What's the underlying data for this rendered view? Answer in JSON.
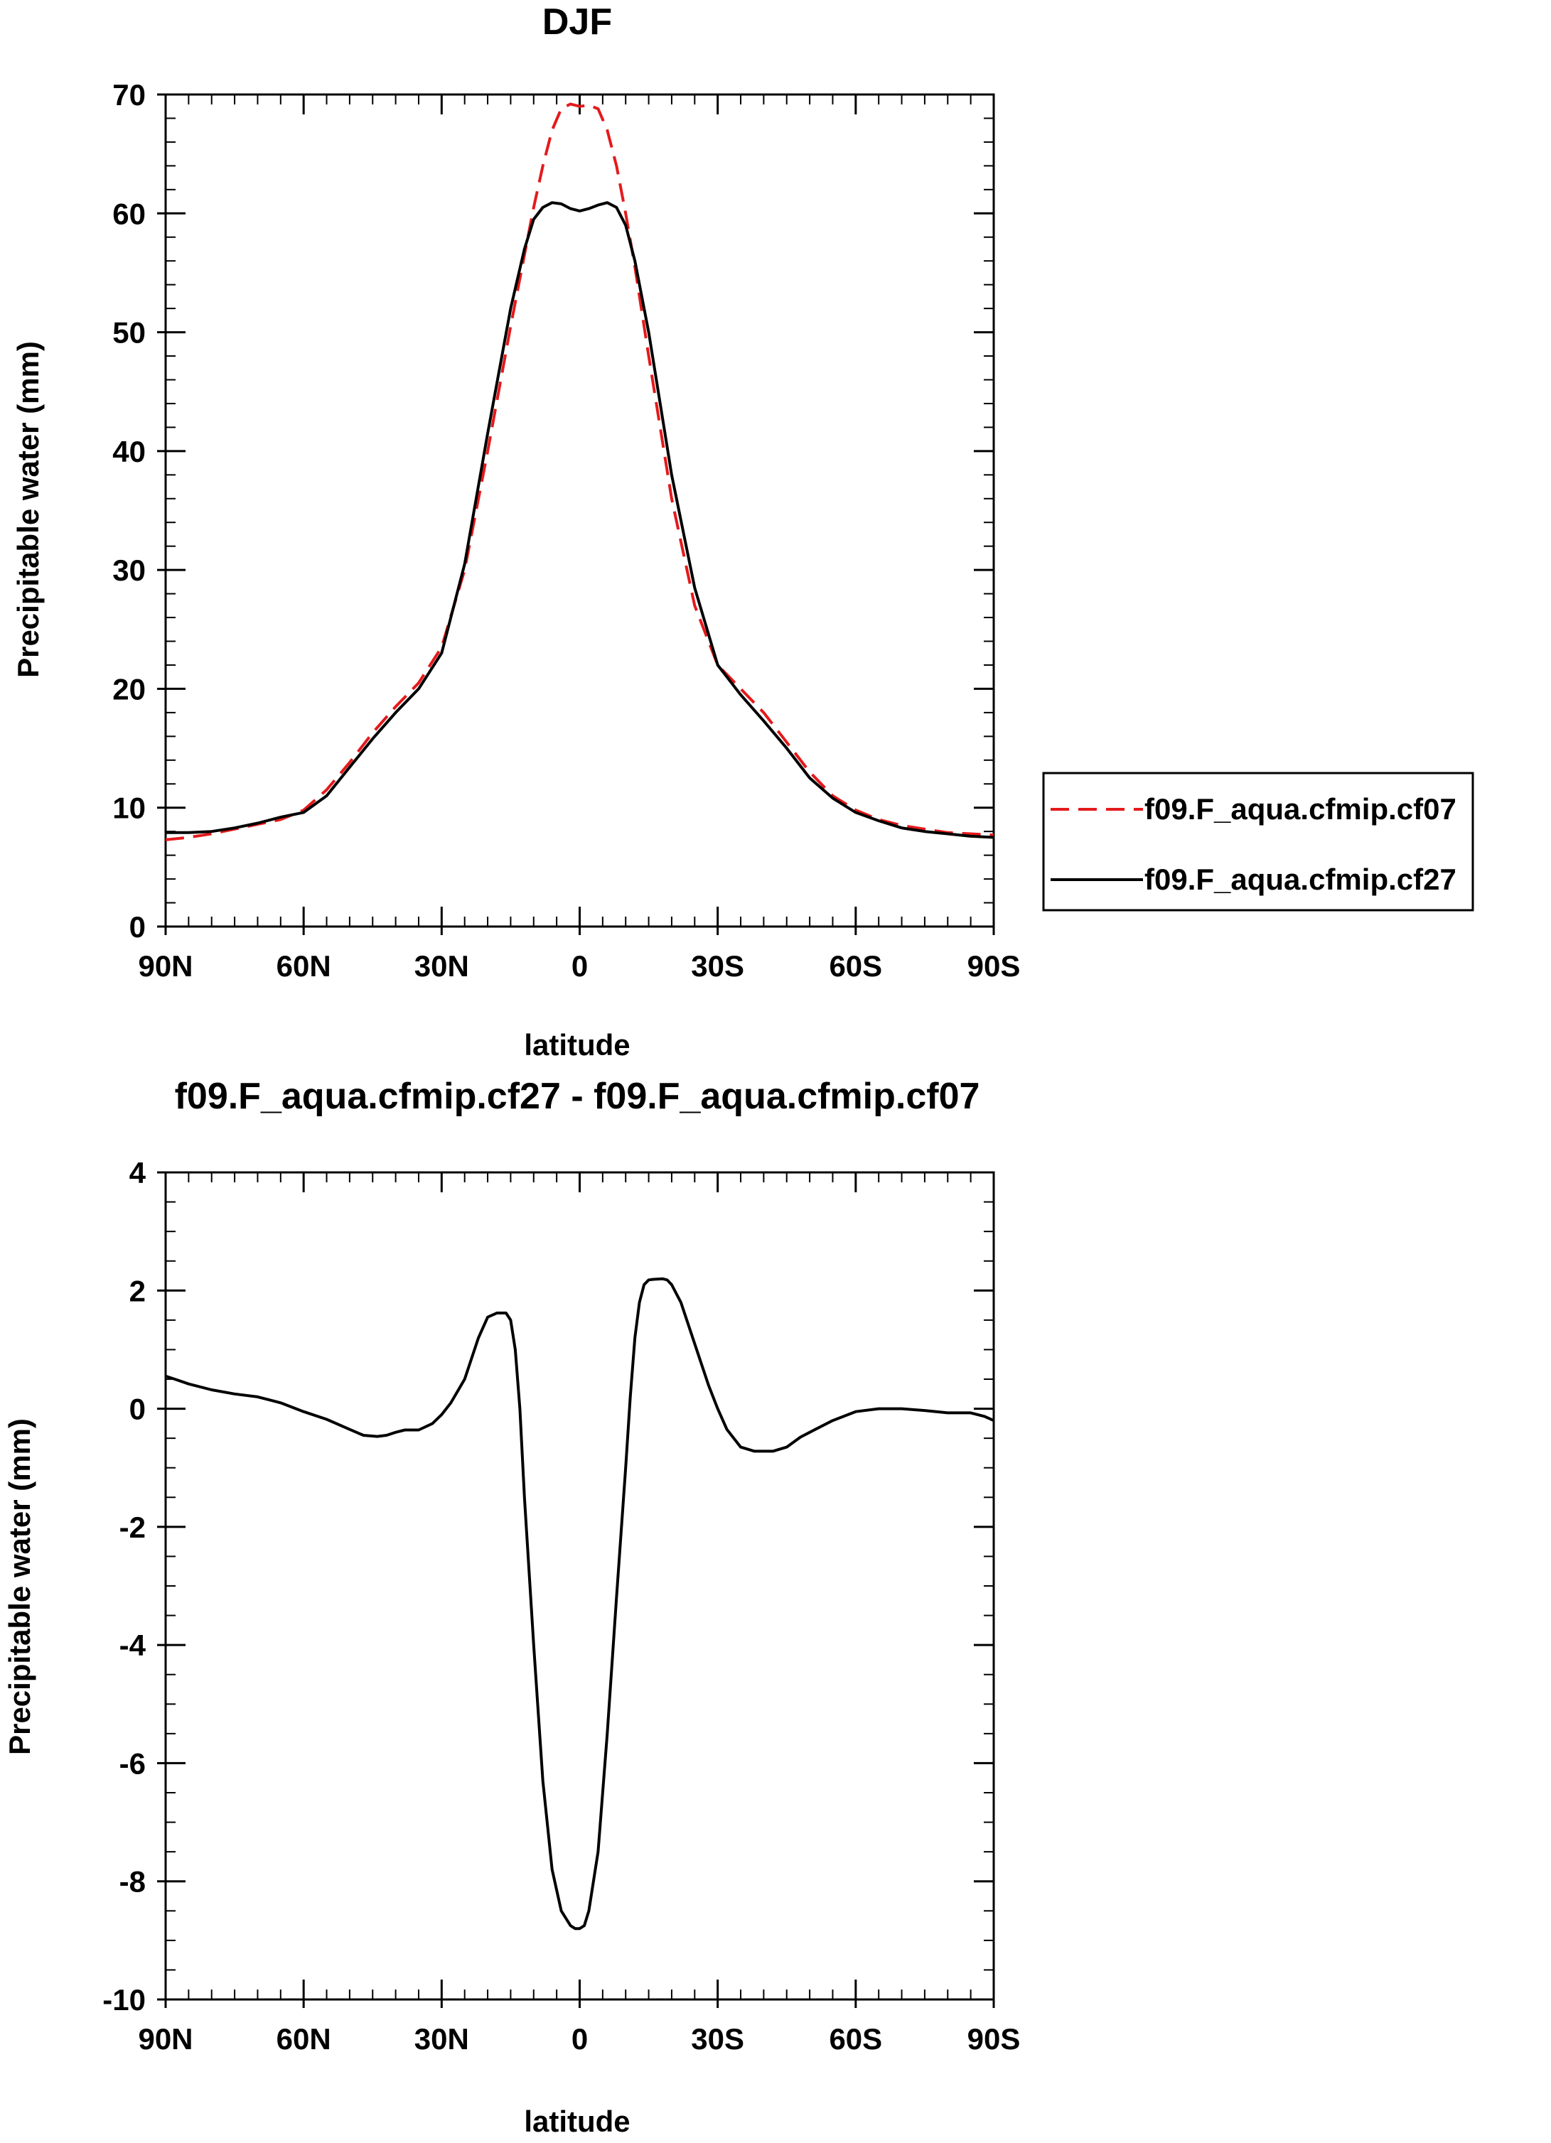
{
  "chart_data": [
    {
      "type": "line",
      "title": "DJF",
      "xlabel": "latitude",
      "ylabel": "Precipitable water (mm)",
      "xlim": [
        90,
        -90
      ],
      "ylim": [
        0,
        70
      ],
      "x_ticks": [
        {
          "value": 90,
          "label": "90N"
        },
        {
          "value": 60,
          "label": "60N"
        },
        {
          "value": 30,
          "label": "30N"
        },
        {
          "value": 0,
          "label": "0"
        },
        {
          "value": -30,
          "label": "30S"
        },
        {
          "value": -60,
          "label": "60S"
        },
        {
          "value": -90,
          "label": "90S"
        }
      ],
      "y_ticks": [
        0,
        10,
        20,
        30,
        40,
        50,
        60,
        70
      ],
      "y_tick_labels": [
        "0",
        "10",
        "20",
        "30",
        "40",
        "50",
        "60",
        "70"
      ],
      "legend_position": "right",
      "series": [
        {
          "name": "f09.F_aqua.cfmip.cf07",
          "color": "#e41a1c",
          "dash": "dashed",
          "x": [
            90,
            85,
            80,
            75,
            70,
            65,
            60,
            55,
            50,
            45,
            40,
            35,
            30,
            25,
            20,
            15,
            12,
            10,
            8,
            6,
            4,
            2,
            0,
            -2,
            -4,
            -6,
            -8,
            -10,
            -12,
            -15,
            -20,
            -25,
            -30,
            -35,
            -40,
            -45,
            -50,
            -55,
            -60,
            -65,
            -70,
            -75,
            -80,
            -85,
            -90
          ],
          "y": [
            7.3,
            7.5,
            7.8,
            8.2,
            8.6,
            9.0,
            9.8,
            11.5,
            13.8,
            16.3,
            18.5,
            20.5,
            23.5,
            30.0,
            40.0,
            50.5,
            56.5,
            60.5,
            64.0,
            67.0,
            68.8,
            69.2,
            69.0,
            69.1,
            68.8,
            67.0,
            64.0,
            60.0,
            55.5,
            48.0,
            36.0,
            27.0,
            22.0,
            20.0,
            18.0,
            15.5,
            13.0,
            11.0,
            9.8,
            9.0,
            8.5,
            8.2,
            7.9,
            7.8,
            7.7
          ]
        },
        {
          "name": "f09.F_aqua.cfmip.cf27",
          "color": "#000000",
          "dash": "solid",
          "x": [
            90,
            85,
            80,
            75,
            70,
            65,
            60,
            55,
            50,
            45,
            40,
            35,
            30,
            25,
            20,
            15,
            12,
            10,
            8,
            6,
            4,
            2,
            0,
            -2,
            -4,
            -6,
            -8,
            -10,
            -12,
            -15,
            -20,
            -25,
            -30,
            -35,
            -40,
            -45,
            -50,
            -55,
            -60,
            -65,
            -70,
            -75,
            -80,
            -85,
            -90
          ],
          "y": [
            7.9,
            7.9,
            8.0,
            8.3,
            8.7,
            9.2,
            9.6,
            11.0,
            13.4,
            15.8,
            18.0,
            20.0,
            23.0,
            30.5,
            41.5,
            52.0,
            57.0,
            59.5,
            60.5,
            60.9,
            60.8,
            60.4,
            60.2,
            60.4,
            60.7,
            60.9,
            60.5,
            59.0,
            56.0,
            50.0,
            38.0,
            28.5,
            22.0,
            19.5,
            17.3,
            15.0,
            12.5,
            10.8,
            9.6,
            8.9,
            8.3,
            8.0,
            7.8,
            7.6,
            7.5
          ]
        }
      ]
    },
    {
      "type": "line",
      "title": "f09.F_aqua.cfmip.cf27 - f09.F_aqua.cfmip.cf07",
      "xlabel": "latitude",
      "ylabel": "Precipitable water (mm)",
      "xlim": [
        90,
        -90
      ],
      "ylim": [
        -10,
        4
      ],
      "x_ticks": [
        {
          "value": 90,
          "label": "90N"
        },
        {
          "value": 60,
          "label": "60N"
        },
        {
          "value": 30,
          "label": "30N"
        },
        {
          "value": 0,
          "label": "0"
        },
        {
          "value": -30,
          "label": "30S"
        },
        {
          "value": -60,
          "label": "60S"
        },
        {
          "value": -90,
          "label": "90S"
        }
      ],
      "y_ticks": [
        -10,
        -8,
        -6,
        -4,
        -2,
        0,
        2,
        4
      ],
      "y_tick_labels": [
        "-10",
        "-8",
        "-6",
        "-4",
        "-2",
        "0",
        "2",
        "4"
      ],
      "series": [
        {
          "color": "#000000",
          "dash": "solid",
          "x": [
            90,
            88,
            85,
            80,
            75,
            70,
            65,
            60,
            55,
            50,
            47,
            44,
            42,
            40,
            38,
            35,
            32,
            30,
            28,
            25,
            22,
            20,
            18,
            16,
            15,
            14,
            13,
            12,
            10,
            8,
            6,
            4,
            2,
            1,
            0,
            -1,
            -2,
            -4,
            -6,
            -8,
            -10,
            -11,
            -12,
            -13,
            -14,
            -15,
            -16,
            -18,
            -19,
            -20,
            -22,
            -25,
            -28,
            -30,
            -32,
            -35,
            -38,
            -40,
            -42,
            -45,
            -48,
            -50,
            -55,
            -60,
            -65,
            -70,
            -75,
            -80,
            -85,
            -88,
            -90
          ],
          "y": [
            0.55,
            0.5,
            0.42,
            0.32,
            0.25,
            0.2,
            0.1,
            -0.05,
            -0.18,
            -0.35,
            -0.45,
            -0.47,
            -0.45,
            -0.4,
            -0.36,
            -0.36,
            -0.25,
            -0.1,
            0.1,
            0.5,
            1.2,
            1.55,
            1.62,
            1.62,
            1.5,
            1.0,
            0.0,
            -1.5,
            -4.0,
            -6.3,
            -7.8,
            -8.5,
            -8.75,
            -8.8,
            -8.8,
            -8.75,
            -8.5,
            -7.5,
            -5.5,
            -3.2,
            -1.0,
            0.2,
            1.2,
            1.8,
            2.1,
            2.18,
            2.19,
            2.2,
            2.18,
            2.1,
            1.8,
            1.1,
            0.4,
            0.0,
            -0.35,
            -0.65,
            -0.72,
            -0.72,
            -0.72,
            -0.65,
            -0.48,
            -0.4,
            -0.2,
            -0.05,
            0.0,
            0.0,
            -0.03,
            -0.07,
            -0.07,
            -0.13,
            -0.2
          ]
        }
      ]
    }
  ]
}
